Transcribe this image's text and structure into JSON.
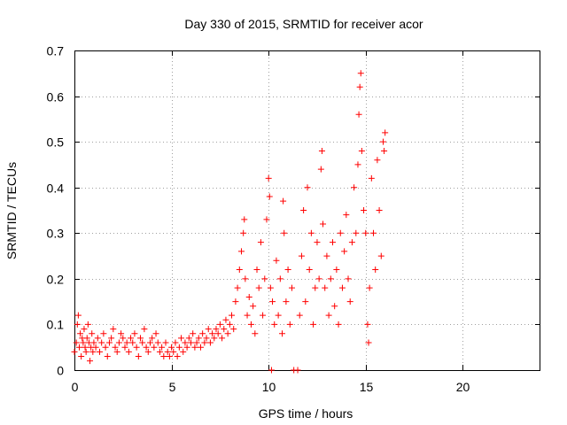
{
  "chart_data": {
    "type": "scatter",
    "title": "Day 330 of 2015, SRMTID for receiver acor",
    "xlabel": "GPS time / hours",
    "ylabel": "SRMTID / TECUs",
    "xlim": [
      0,
      24
    ],
    "ylim": [
      0,
      0.7
    ],
    "xticks": [
      0,
      5,
      10,
      15,
      20
    ],
    "yticks": [
      0,
      0.1,
      0.2,
      0.3,
      0.4,
      0.5,
      0.6,
      0.7
    ],
    "xtick_labels": [
      "0",
      "5",
      "10",
      "15",
      "20"
    ],
    "ytick_labels": [
      "0",
      "0.1",
      "0.2",
      "0.3",
      "0.4",
      "0.5",
      "0.6",
      "0.7"
    ],
    "grid": true,
    "marker": "+",
    "color": "#ff0000",
    "series": [
      {
        "name": "SRMTID",
        "points": [
          [
            0.0,
            0.04
          ],
          [
            0.1,
            0.06
          ],
          [
            0.15,
            0.1
          ],
          [
            0.2,
            0.12
          ],
          [
            0.25,
            0.05
          ],
          [
            0.3,
            0.08
          ],
          [
            0.35,
            0.03
          ],
          [
            0.4,
            0.07
          ],
          [
            0.45,
            0.06
          ],
          [
            0.5,
            0.09
          ],
          [
            0.55,
            0.05
          ],
          [
            0.6,
            0.04
          ],
          [
            0.65,
            0.07
          ],
          [
            0.7,
            0.1
          ],
          [
            0.75,
            0.06
          ],
          [
            0.8,
            0.02
          ],
          [
            0.85,
            0.05
          ],
          [
            0.9,
            0.08
          ],
          [
            0.95,
            0.04
          ],
          [
            1.0,
            0.06
          ],
          [
            1.1,
            0.05
          ],
          [
            1.2,
            0.07
          ],
          [
            1.3,
            0.04
          ],
          [
            1.4,
            0.06
          ],
          [
            1.5,
            0.08
          ],
          [
            1.6,
            0.05
          ],
          [
            1.7,
            0.03
          ],
          [
            1.8,
            0.06
          ],
          [
            1.9,
            0.07
          ],
          [
            2.0,
            0.09
          ],
          [
            2.1,
            0.05
          ],
          [
            2.2,
            0.04
          ],
          [
            2.3,
            0.06
          ],
          [
            2.4,
            0.08
          ],
          [
            2.5,
            0.07
          ],
          [
            2.6,
            0.05
          ],
          [
            2.7,
            0.06
          ],
          [
            2.8,
            0.04
          ],
          [
            2.9,
            0.07
          ],
          [
            3.0,
            0.06
          ],
          [
            3.1,
            0.08
          ],
          [
            3.2,
            0.05
          ],
          [
            3.3,
            0.03
          ],
          [
            3.4,
            0.07
          ],
          [
            3.5,
            0.06
          ],
          [
            3.6,
            0.09
          ],
          [
            3.7,
            0.05
          ],
          [
            3.8,
            0.04
          ],
          [
            3.9,
            0.06
          ],
          [
            4.0,
            0.07
          ],
          [
            4.1,
            0.05
          ],
          [
            4.2,
            0.08
          ],
          [
            4.3,
            0.06
          ],
          [
            4.4,
            0.04
          ],
          [
            4.5,
            0.05
          ],
          [
            4.6,
            0.03
          ],
          [
            4.7,
            0.06
          ],
          [
            4.8,
            0.04
          ],
          [
            4.9,
            0.03
          ],
          [
            5.0,
            0.05
          ],
          [
            5.1,
            0.04
          ],
          [
            5.2,
            0.06
          ],
          [
            5.3,
            0.03
          ],
          [
            5.4,
            0.05
          ],
          [
            5.5,
            0.07
          ],
          [
            5.6,
            0.04
          ],
          [
            5.7,
            0.06
          ],
          [
            5.8,
            0.05
          ],
          [
            5.9,
            0.07
          ],
          [
            6.0,
            0.06
          ],
          [
            6.1,
            0.08
          ],
          [
            6.2,
            0.05
          ],
          [
            6.3,
            0.06
          ],
          [
            6.4,
            0.07
          ],
          [
            6.5,
            0.05
          ],
          [
            6.6,
            0.08
          ],
          [
            6.7,
            0.06
          ],
          [
            6.8,
            0.07
          ],
          [
            6.9,
            0.09
          ],
          [
            7.0,
            0.06
          ],
          [
            7.1,
            0.08
          ],
          [
            7.2,
            0.07
          ],
          [
            7.3,
            0.09
          ],
          [
            7.4,
            0.08
          ],
          [
            7.5,
            0.1
          ],
          [
            7.6,
            0.07
          ],
          [
            7.7,
            0.09
          ],
          [
            7.8,
            0.11
          ],
          [
            7.9,
            0.08
          ],
          [
            8.0,
            0.1
          ],
          [
            8.1,
            0.12
          ],
          [
            8.2,
            0.09
          ],
          [
            8.3,
            0.15
          ],
          [
            8.4,
            0.18
          ],
          [
            8.5,
            0.22
          ],
          [
            8.6,
            0.26
          ],
          [
            8.7,
            0.3
          ],
          [
            8.75,
            0.33
          ],
          [
            8.8,
            0.2
          ],
          [
            8.9,
            0.12
          ],
          [
            9.0,
            0.16
          ],
          [
            9.1,
            0.1
          ],
          [
            9.2,
            0.14
          ],
          [
            9.3,
            0.08
          ],
          [
            9.4,
            0.22
          ],
          [
            9.5,
            0.18
          ],
          [
            9.6,
            0.28
          ],
          [
            9.7,
            0.12
          ],
          [
            9.8,
            0.2
          ],
          [
            9.9,
            0.33
          ],
          [
            10.0,
            0.42
          ],
          [
            10.05,
            0.38
          ],
          [
            10.1,
            0.18
          ],
          [
            10.15,
            0.0
          ],
          [
            10.2,
            0.15
          ],
          [
            10.3,
            0.1
          ],
          [
            10.4,
            0.24
          ],
          [
            10.5,
            0.12
          ],
          [
            10.6,
            0.2
          ],
          [
            10.7,
            0.08
          ],
          [
            10.75,
            0.37
          ],
          [
            10.8,
            0.3
          ],
          [
            10.9,
            0.15
          ],
          [
            11.0,
            0.22
          ],
          [
            11.1,
            0.1
          ],
          [
            11.2,
            0.18
          ],
          [
            11.3,
            0.0
          ],
          [
            11.5,
            0.0
          ],
          [
            11.6,
            0.12
          ],
          [
            11.7,
            0.25
          ],
          [
            11.8,
            0.35
          ],
          [
            11.9,
            0.15
          ],
          [
            12.0,
            0.4
          ],
          [
            12.1,
            0.22
          ],
          [
            12.2,
            0.3
          ],
          [
            12.3,
            0.1
          ],
          [
            12.4,
            0.18
          ],
          [
            12.5,
            0.28
          ],
          [
            12.6,
            0.2
          ],
          [
            12.7,
            0.44
          ],
          [
            12.75,
            0.48
          ],
          [
            12.8,
            0.32
          ],
          [
            12.9,
            0.18
          ],
          [
            13.0,
            0.25
          ],
          [
            13.1,
            0.12
          ],
          [
            13.2,
            0.2
          ],
          [
            13.3,
            0.28
          ],
          [
            13.4,
            0.14
          ],
          [
            13.5,
            0.22
          ],
          [
            13.6,
            0.1
          ],
          [
            13.7,
            0.3
          ],
          [
            13.8,
            0.18
          ],
          [
            13.9,
            0.26
          ],
          [
            14.0,
            0.34
          ],
          [
            14.1,
            0.2
          ],
          [
            14.2,
            0.15
          ],
          [
            14.3,
            0.28
          ],
          [
            14.4,
            0.4
          ],
          [
            14.5,
            0.3
          ],
          [
            14.6,
            0.45
          ],
          [
            14.65,
            0.56
          ],
          [
            14.7,
            0.62
          ],
          [
            14.75,
            0.65
          ],
          [
            14.8,
            0.48
          ],
          [
            14.9,
            0.35
          ],
          [
            15.0,
            0.3
          ],
          [
            15.1,
            0.1
          ],
          [
            15.15,
            0.06
          ],
          [
            15.2,
            0.18
          ],
          [
            15.3,
            0.42
          ],
          [
            15.4,
            0.3
          ],
          [
            15.5,
            0.22
          ],
          [
            15.6,
            0.46
          ],
          [
            15.7,
            0.35
          ],
          [
            15.8,
            0.25
          ],
          [
            15.9,
            0.5
          ],
          [
            15.95,
            0.48
          ],
          [
            16.0,
            0.52
          ]
        ]
      }
    ]
  }
}
